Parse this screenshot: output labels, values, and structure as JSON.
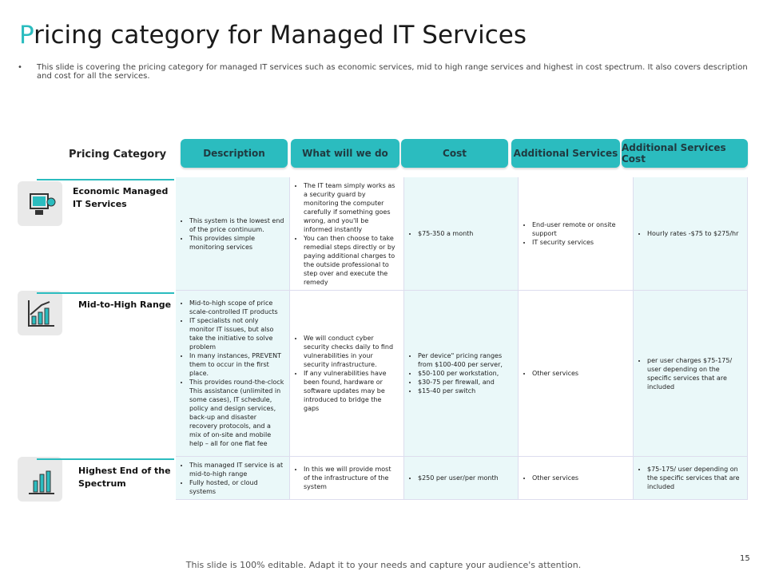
{
  "header": {
    "title": "Pricing category for Managed IT Services",
    "description": "This slide is covering the pricing category for managed IT services such as economic services, mid to high range services and highest in cost spectrum. It also covers description and cost for all the services."
  },
  "table": {
    "corner": "Pricing Category",
    "columns": [
      "Description",
      "What will we do",
      "Cost",
      "Additional Services",
      "Additional Services Cost"
    ],
    "rows": [
      {
        "category": "Economic Managed IT Services",
        "cells": [
          [
            "This system is the lowest end of the price continuum.",
            "This provides simple monitoring services"
          ],
          [
            "The IT team simply works as a security guard by monitoring the computer carefully if something goes wrong, and you'll be informed instantly",
            "You can then choose to take remedial steps directly or by paying additional charges to the outside professional to step over and execute the remedy"
          ],
          [
            "$75-350 a month"
          ],
          [
            "End-user remote or onsite support",
            "IT security services"
          ],
          [
            "Hourly rates -$75 to $275/hr"
          ]
        ]
      },
      {
        "category": "Mid-to-High Range",
        "cells": [
          [
            "Mid-to-high scope of price scale-controlled IT products",
            "IT specialists not only monitor IT issues, but also take the initiative to solve problem",
            "In many instances, PREVENT them to occur in the first place.",
            "This provides round-the-clock This assistance (unlimited in some cases), IT schedule, policy and design services, back-up and disaster recovery protocols, and a mix of on-site and mobile help – all for one flat fee"
          ],
          [
            "We will conduct cyber security checks daily to find vulnerabilities in your security infrastructure.",
            "If any vulnerabilities have been found, hardware or software updates may be introduced to bridge the gaps"
          ],
          [
            "Per device\" pricing ranges from $100-400 per server,",
            "$50-100 per workstation,",
            "$30-75 per firewall, and",
            "$15-40 per switch"
          ],
          [
            "Other services"
          ],
          [
            "per user charges $75-175/ user depending on the specific services that are included"
          ]
        ]
      },
      {
        "category": "Highest End of the Spectrum",
        "cells": [
          [
            "This managed IT service is at mid-to-high range",
            "Fully hosted, or cloud systems"
          ],
          [
            "In this we will provide most of the infrastructure of the system"
          ],
          [
            "$250 per user/per month"
          ],
          [
            "Other services"
          ],
          [
            "$75-175/ user depending on the specific services that are included"
          ]
        ]
      }
    ]
  },
  "footer": {
    "note": "This slide is 100% editable. Adapt it to your needs and capture your audience's attention.",
    "page": "15"
  }
}
